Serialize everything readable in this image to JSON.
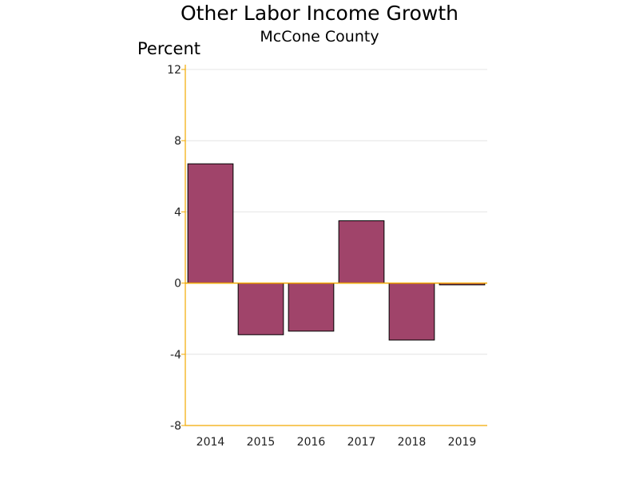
{
  "chart_data": {
    "type": "bar",
    "title": "Other Labor Income Growth",
    "subtitle": "McCone County",
    "xlabel": "",
    "ylabel": "Percent",
    "categories": [
      "2014",
      "2015",
      "2016",
      "2017",
      "2018",
      "2019"
    ],
    "series": [
      {
        "values": [
          6.7,
          -2.9,
          -2.7,
          3.5,
          -3.2,
          -0.1
        ]
      }
    ],
    "ylim": [
      -8,
      12
    ],
    "yticks": [
      -8,
      -4,
      0,
      4,
      8,
      12
    ],
    "ytick_labels": [
      "-8",
      "-4",
      "0",
      "4",
      "8",
      "12"
    ],
    "grid": true,
    "legend": "none",
    "colors": {
      "bar_fill": "#A0446A",
      "bar_stroke": "#000000",
      "axis": "#F2A900",
      "gridline": "#E4E4E4"
    }
  }
}
